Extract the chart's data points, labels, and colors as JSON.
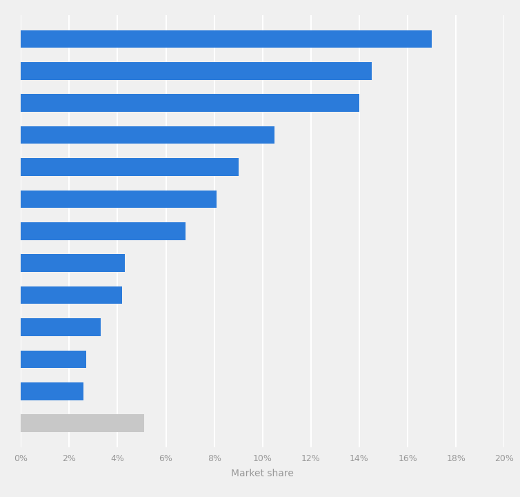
{
  "values": [
    17.0,
    14.5,
    14.0,
    10.5,
    9.0,
    8.1,
    6.8,
    4.3,
    4.2,
    3.3,
    2.7,
    2.6,
    5.1
  ],
  "bar_colors": [
    "#2b7bda",
    "#2b7bda",
    "#2b7bda",
    "#2b7bda",
    "#2b7bda",
    "#2b7bda",
    "#2b7bda",
    "#2b7bda",
    "#2b7bda",
    "#2b7bda",
    "#2b7bda",
    "#2b7bda",
    "#c8c8c8"
  ],
  "xlabel": "Market share",
  "xlim": [
    0,
    20
  ],
  "xtick_labels": [
    "0%",
    "2%",
    "4%",
    "6%",
    "8%",
    "10%",
    "12%",
    "14%",
    "16%",
    "18%",
    "20%"
  ],
  "xtick_values": [
    0,
    2,
    4,
    6,
    8,
    10,
    12,
    14,
    16,
    18,
    20
  ],
  "background_color": "#f0f0f0",
  "plot_bg_color": "#f0f0f0",
  "grid_color": "#ffffff",
  "bar_height": 0.55,
  "xlabel_fontsize": 10,
  "xtick_fontsize": 9
}
